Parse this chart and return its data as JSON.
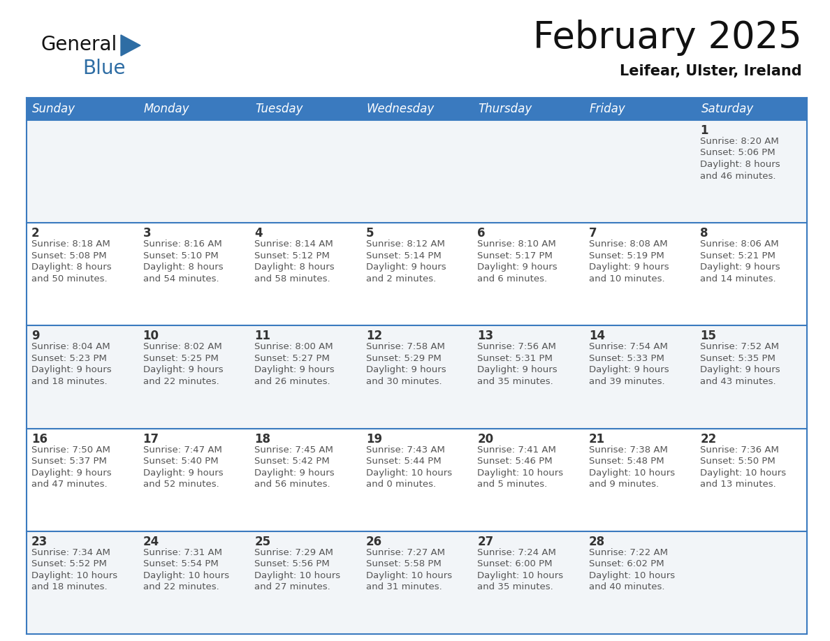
{
  "title": "February 2025",
  "subtitle": "Leifear, Ulster, Ireland",
  "header_bg_color": "#3a7abf",
  "header_text_color": "#ffffff",
  "cell_bg_color_odd": "#f2f5f8",
  "cell_bg_color_even": "#ffffff",
  "day_number_color": "#333333",
  "info_text_color": "#555555",
  "border_color": "#3a7abf",
  "separator_color": "#3a7abf",
  "days_of_week": [
    "Sunday",
    "Monday",
    "Tuesday",
    "Wednesday",
    "Thursday",
    "Friday",
    "Saturday"
  ],
  "weeks": [
    [
      {
        "day": null,
        "info": null
      },
      {
        "day": null,
        "info": null
      },
      {
        "day": null,
        "info": null
      },
      {
        "day": null,
        "info": null
      },
      {
        "day": null,
        "info": null
      },
      {
        "day": null,
        "info": null
      },
      {
        "day": 1,
        "info": "Sunrise: 8:20 AM\nSunset: 5:06 PM\nDaylight: 8 hours\nand 46 minutes."
      }
    ],
    [
      {
        "day": 2,
        "info": "Sunrise: 8:18 AM\nSunset: 5:08 PM\nDaylight: 8 hours\nand 50 minutes."
      },
      {
        "day": 3,
        "info": "Sunrise: 8:16 AM\nSunset: 5:10 PM\nDaylight: 8 hours\nand 54 minutes."
      },
      {
        "day": 4,
        "info": "Sunrise: 8:14 AM\nSunset: 5:12 PM\nDaylight: 8 hours\nand 58 minutes."
      },
      {
        "day": 5,
        "info": "Sunrise: 8:12 AM\nSunset: 5:14 PM\nDaylight: 9 hours\nand 2 minutes."
      },
      {
        "day": 6,
        "info": "Sunrise: 8:10 AM\nSunset: 5:17 PM\nDaylight: 9 hours\nand 6 minutes."
      },
      {
        "day": 7,
        "info": "Sunrise: 8:08 AM\nSunset: 5:19 PM\nDaylight: 9 hours\nand 10 minutes."
      },
      {
        "day": 8,
        "info": "Sunrise: 8:06 AM\nSunset: 5:21 PM\nDaylight: 9 hours\nand 14 minutes."
      }
    ],
    [
      {
        "day": 9,
        "info": "Sunrise: 8:04 AM\nSunset: 5:23 PM\nDaylight: 9 hours\nand 18 minutes."
      },
      {
        "day": 10,
        "info": "Sunrise: 8:02 AM\nSunset: 5:25 PM\nDaylight: 9 hours\nand 22 minutes."
      },
      {
        "day": 11,
        "info": "Sunrise: 8:00 AM\nSunset: 5:27 PM\nDaylight: 9 hours\nand 26 minutes."
      },
      {
        "day": 12,
        "info": "Sunrise: 7:58 AM\nSunset: 5:29 PM\nDaylight: 9 hours\nand 30 minutes."
      },
      {
        "day": 13,
        "info": "Sunrise: 7:56 AM\nSunset: 5:31 PM\nDaylight: 9 hours\nand 35 minutes."
      },
      {
        "day": 14,
        "info": "Sunrise: 7:54 AM\nSunset: 5:33 PM\nDaylight: 9 hours\nand 39 minutes."
      },
      {
        "day": 15,
        "info": "Sunrise: 7:52 AM\nSunset: 5:35 PM\nDaylight: 9 hours\nand 43 minutes."
      }
    ],
    [
      {
        "day": 16,
        "info": "Sunrise: 7:50 AM\nSunset: 5:37 PM\nDaylight: 9 hours\nand 47 minutes."
      },
      {
        "day": 17,
        "info": "Sunrise: 7:47 AM\nSunset: 5:40 PM\nDaylight: 9 hours\nand 52 minutes."
      },
      {
        "day": 18,
        "info": "Sunrise: 7:45 AM\nSunset: 5:42 PM\nDaylight: 9 hours\nand 56 minutes."
      },
      {
        "day": 19,
        "info": "Sunrise: 7:43 AM\nSunset: 5:44 PM\nDaylight: 10 hours\nand 0 minutes."
      },
      {
        "day": 20,
        "info": "Sunrise: 7:41 AM\nSunset: 5:46 PM\nDaylight: 10 hours\nand 5 minutes."
      },
      {
        "day": 21,
        "info": "Sunrise: 7:38 AM\nSunset: 5:48 PM\nDaylight: 10 hours\nand 9 minutes."
      },
      {
        "day": 22,
        "info": "Sunrise: 7:36 AM\nSunset: 5:50 PM\nDaylight: 10 hours\nand 13 minutes."
      }
    ],
    [
      {
        "day": 23,
        "info": "Sunrise: 7:34 AM\nSunset: 5:52 PM\nDaylight: 10 hours\nand 18 minutes."
      },
      {
        "day": 24,
        "info": "Sunrise: 7:31 AM\nSunset: 5:54 PM\nDaylight: 10 hours\nand 22 minutes."
      },
      {
        "day": 25,
        "info": "Sunrise: 7:29 AM\nSunset: 5:56 PM\nDaylight: 10 hours\nand 27 minutes."
      },
      {
        "day": 26,
        "info": "Sunrise: 7:27 AM\nSunset: 5:58 PM\nDaylight: 10 hours\nand 31 minutes."
      },
      {
        "day": 27,
        "info": "Sunrise: 7:24 AM\nSunset: 6:00 PM\nDaylight: 10 hours\nand 35 minutes."
      },
      {
        "day": 28,
        "info": "Sunrise: 7:22 AM\nSunset: 6:02 PM\nDaylight: 10 hours\nand 40 minutes."
      },
      {
        "day": null,
        "info": null
      }
    ]
  ],
  "logo_triangle_color": "#2e6da4",
  "title_fontsize": 38,
  "subtitle_fontsize": 15,
  "header_fontsize": 12,
  "day_num_fontsize": 12,
  "info_fontsize": 9.5
}
